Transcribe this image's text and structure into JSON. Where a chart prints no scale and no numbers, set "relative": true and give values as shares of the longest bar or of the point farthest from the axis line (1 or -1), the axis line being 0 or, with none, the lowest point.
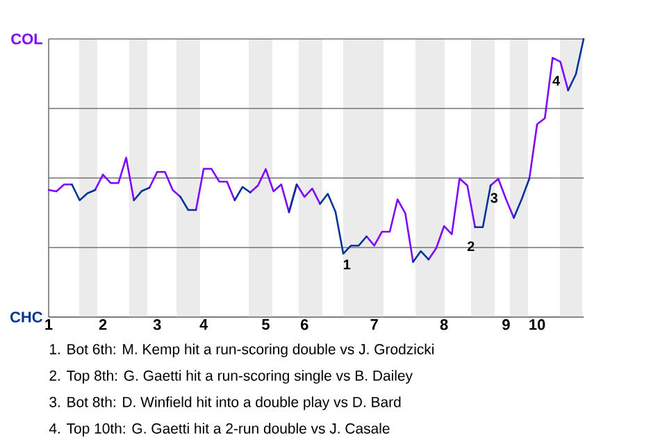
{
  "chart_data": {
    "type": "line",
    "relative": true,
    "categories": [
      "1",
      null,
      null,
      null,
      null,
      null,
      null,
      "2",
      null,
      null,
      null,
      null,
      null,
      null,
      "3",
      null,
      null,
      null,
      null,
      null,
      "4",
      null,
      null,
      null,
      null,
      null,
      null,
      null,
      "5",
      null,
      null,
      null,
      null,
      "6",
      null,
      null,
      null,
      null,
      null,
      null,
      null,
      null,
      "7",
      null,
      null,
      null,
      null,
      null,
      null,
      null,
      null,
      "8",
      null,
      null,
      null,
      null,
      null,
      null,
      null,
      "9",
      null,
      null,
      null,
      "10",
      null,
      null,
      null,
      null,
      null,
      null
    ],
    "series": [
      {
        "color": "#8000ff",
        "values": [
          0.457,
          0.452,
          0.477,
          0.477,
          null,
          null,
          0.457,
          0.512,
          0.482,
          0.482,
          0.573,
          0.42,
          null,
          0.465,
          0.522,
          0.522,
          0.457,
          0.432,
          null,
          0.385,
          0.533,
          0.533,
          0.487,
          0.487,
          0.42,
          null,
          0.448,
          0.473,
          0.532,
          0.452,
          0.477,
          0.377,
          0.477,
          0.432,
          0.462,
          0.407,
          null,
          null,
          null,
          null,
          null,
          0.29,
          0.257,
          0.307,
          0.307,
          0.423,
          0.373,
          0.198,
          null,
          0.207,
          0.248,
          0.327,
          0.298,
          0.498,
          0.473,
          0.323,
          null,
          0.473,
          0.497,
          0.423,
          0.357,
          null,
          0.498,
          0.693,
          0.715,
          0.932,
          0.918,
          0.815,
          null,
          null
        ]
      },
      {
        "color": "#003399",
        "values": [
          null,
          null,
          null,
          0.477,
          0.42,
          0.445,
          0.457,
          null,
          null,
          null,
          null,
          0.42,
          0.453,
          0.465,
          null,
          null,
          null,
          0.432,
          0.385,
          0.385,
          null,
          null,
          null,
          null,
          0.42,
          0.468,
          0.448,
          null,
          null,
          null,
          null,
          0.377,
          0.477,
          null,
          null,
          0.407,
          0.443,
          0.378,
          0.228,
          0.257,
          0.257,
          0.29,
          null,
          null,
          null,
          null,
          null,
          0.198,
          0.237,
          0.207,
          null,
          null,
          null,
          null,
          null,
          0.323,
          0.323,
          0.473,
          null,
          null,
          0.357,
          0.423,
          0.498,
          null,
          null,
          null,
          null,
          0.815,
          0.873,
          1
        ]
      }
    ],
    "ref_lines": [
      {
        "axis": "y",
        "value": 0,
        "label": "CHC",
        "color": "#737373"
      },
      {
        "axis": "y",
        "value": 1,
        "label": "COL",
        "color": "#737373"
      }
    ],
    "annotations": [
      {
        "text": "1",
        "y": 0.257
      },
      {
        "text": "2",
        "y": 0.323
      },
      {
        "text": "3",
        "y": 0.497
      },
      {
        "text": "4",
        "y": 0.918
      },
      "1. Bot 6th: M. Kemp hit a run-scoring double vs J. Grodzicki",
      "2. Top 8th: G. Gaetti hit a run-scoring single vs B. Dailey",
      "3. Bot 8th: D. Winfield hit into a double play vs D. Bard",
      "4. Top 10th: G. Gaetti hit a 2-run double vs J. Casale"
    ]
  }
}
